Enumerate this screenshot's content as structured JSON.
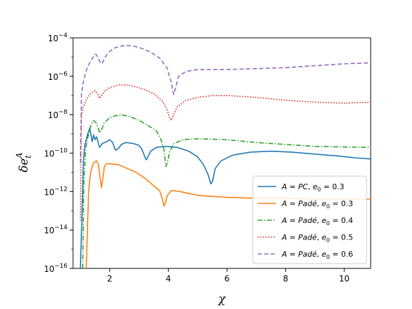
{
  "chart_data": {
    "type": "line",
    "xlabel": "χ",
    "ylabel": "δe_t^A",
    "xlim": [
      0.75,
      10.9
    ],
    "ylim_log10": [
      -16,
      -4
    ],
    "y_scale": "log",
    "grid": false,
    "legend_position": "lower-right",
    "x_ticks": [
      2,
      4,
      6,
      8,
      10
    ],
    "x_tick_labels": [
      "2",
      "4",
      "6",
      "8",
      "10"
    ],
    "y_ticks": [
      {
        "base": "10",
        "exp": "−4"
      },
      {
        "base": "10",
        "exp": "−6"
      },
      {
        "base": "10",
        "exp": "−8"
      },
      {
        "base": "10",
        "exp": "−10"
      },
      {
        "base": "10",
        "exp": "−12"
      },
      {
        "base": "10",
        "exp": "−14"
      },
      {
        "base": "10",
        "exp": "−16"
      }
    ],
    "y_tick_values_log10": [
      -4,
      -6,
      -8,
      -10,
      -12,
      -14,
      -16
    ],
    "series": [
      {
        "name": "A = PC, e0 = 0.3",
        "legend_a": "A",
        "legend_a_value": "PC",
        "legend_e": "e",
        "legend_e_sub": "0",
        "legend_e_value": "0.3",
        "color": "#1f77b4",
        "dash": "solid",
        "points": [
          [
            1.0,
            -16
          ],
          [
            1.05,
            -13.5
          ],
          [
            1.1,
            -10.5
          ],
          [
            1.15,
            -9.6
          ],
          [
            1.25,
            -9.0
          ],
          [
            1.32,
            -8.7
          ],
          [
            1.4,
            -9.4
          ],
          [
            1.45,
            -9.05
          ],
          [
            1.5,
            -9.3
          ],
          [
            1.55,
            -9.15
          ],
          [
            1.6,
            -9.4
          ],
          [
            1.65,
            -9.7
          ],
          [
            1.75,
            -9.5
          ],
          [
            1.9,
            -9.4
          ],
          [
            2.0,
            -9.3
          ],
          [
            2.1,
            -9.45
          ],
          [
            2.2,
            -9.85
          ],
          [
            2.3,
            -9.75
          ],
          [
            2.4,
            -9.55
          ],
          [
            2.55,
            -9.45
          ],
          [
            2.8,
            -9.5
          ],
          [
            3.0,
            -9.6
          ],
          [
            3.1,
            -9.8
          ],
          [
            3.2,
            -10.2
          ],
          [
            3.25,
            -10.35
          ],
          [
            3.3,
            -10.2
          ],
          [
            3.4,
            -9.9
          ],
          [
            3.6,
            -9.7
          ],
          [
            3.9,
            -9.65
          ],
          [
            4.3,
            -9.7
          ],
          [
            4.7,
            -9.9
          ],
          [
            5.0,
            -10.2
          ],
          [
            5.2,
            -10.6
          ],
          [
            5.35,
            -11.1
          ],
          [
            5.45,
            -11.6
          ],
          [
            5.5,
            -11.5
          ],
          [
            5.6,
            -10.8
          ],
          [
            5.8,
            -10.4
          ],
          [
            6.2,
            -10.1
          ],
          [
            6.8,
            -9.95
          ],
          [
            7.5,
            -9.9
          ],
          [
            8.2,
            -9.95
          ],
          [
            9.0,
            -10.05
          ],
          [
            9.8,
            -10.15
          ],
          [
            10.4,
            -10.25
          ],
          [
            10.9,
            -10.3
          ]
        ]
      },
      {
        "name": "A = Padé, e0 = 0.3",
        "legend_a": "A",
        "legend_a_value": "Padé",
        "legend_e": "e",
        "legend_e_sub": "0",
        "legend_e_value": "0.3",
        "color": "#ff7f0e",
        "dash": "solid",
        "points": [
          [
            1.2,
            -16
          ],
          [
            1.28,
            -12.0
          ],
          [
            1.35,
            -11.0
          ],
          [
            1.45,
            -10.5
          ],
          [
            1.55,
            -10.4
          ],
          [
            1.62,
            -10.6
          ],
          [
            1.67,
            -11.3
          ],
          [
            1.72,
            -11.8
          ],
          [
            1.77,
            -11.3
          ],
          [
            1.82,
            -10.7
          ],
          [
            1.9,
            -10.55
          ],
          [
            2.0,
            -10.55
          ],
          [
            2.3,
            -10.6
          ],
          [
            2.6,
            -10.8
          ],
          [
            2.9,
            -11.0
          ],
          [
            3.2,
            -11.3
          ],
          [
            3.5,
            -11.7
          ],
          [
            3.7,
            -11.95
          ],
          [
            3.8,
            -12.4
          ],
          [
            3.85,
            -12.75
          ],
          [
            3.9,
            -12.6
          ],
          [
            3.97,
            -12.2
          ],
          [
            4.1,
            -11.95
          ],
          [
            4.4,
            -12.0
          ],
          [
            5.0,
            -12.2
          ],
          [
            6.0,
            -12.3
          ],
          [
            7.0,
            -12.35
          ],
          [
            8.0,
            -12.35
          ],
          [
            9.0,
            -12.4
          ],
          [
            10.0,
            -12.4
          ],
          [
            10.9,
            -12.4
          ]
        ]
      },
      {
        "name": "A = Padé, e0 = 0.4",
        "legend_a": "A",
        "legend_a_value": "Padé",
        "legend_e": "e",
        "legend_e_sub": "0",
        "legend_e_value": "0.4",
        "color": "#2ca02c",
        "dash": "dashdot",
        "points": [
          [
            1.08,
            -16
          ],
          [
            1.12,
            -11.5
          ],
          [
            1.18,
            -9.8
          ],
          [
            1.25,
            -9.2
          ],
          [
            1.35,
            -8.6
          ],
          [
            1.45,
            -8.3
          ],
          [
            1.55,
            -8.45
          ],
          [
            1.62,
            -8.75
          ],
          [
            1.66,
            -8.95
          ],
          [
            1.72,
            -8.8
          ],
          [
            1.8,
            -8.45
          ],
          [
            2.0,
            -8.15
          ],
          [
            2.2,
            -8.05
          ],
          [
            2.4,
            -8.0
          ],
          [
            2.7,
            -8.1
          ],
          [
            3.0,
            -8.3
          ],
          [
            3.3,
            -8.55
          ],
          [
            3.6,
            -8.85
          ],
          [
            3.75,
            -9.3
          ],
          [
            3.85,
            -9.8
          ],
          [
            3.92,
            -10.7
          ],
          [
            3.97,
            -10.5
          ],
          [
            4.05,
            -9.9
          ],
          [
            4.2,
            -9.5
          ],
          [
            4.5,
            -9.3
          ],
          [
            5.0,
            -9.25
          ],
          [
            6.0,
            -9.3
          ],
          [
            7.0,
            -9.45
          ],
          [
            8.0,
            -9.55
          ],
          [
            9.0,
            -9.65
          ],
          [
            10.0,
            -9.68
          ],
          [
            10.9,
            -9.7
          ]
        ]
      },
      {
        "name": "A = Padé, e0 = 0.5",
        "legend_a": "A",
        "legend_a_value": "Padé",
        "legend_e": "e",
        "legend_e_sub": "0",
        "legend_e_value": "0.5",
        "color": "#d62728",
        "dash": "dotted",
        "points": [
          [
            1.0,
            -13.5
          ],
          [
            1.04,
            -8.0
          ],
          [
            1.1,
            -7.6
          ],
          [
            1.2,
            -7.2
          ],
          [
            1.35,
            -6.9
          ],
          [
            1.5,
            -6.75
          ],
          [
            1.6,
            -6.95
          ],
          [
            1.66,
            -7.15
          ],
          [
            1.72,
            -7.0
          ],
          [
            1.85,
            -6.75
          ],
          [
            2.0,
            -6.6
          ],
          [
            2.3,
            -6.45
          ],
          [
            2.6,
            -6.45
          ],
          [
            2.9,
            -6.55
          ],
          [
            3.2,
            -6.7
          ],
          [
            3.5,
            -6.9
          ],
          [
            3.8,
            -7.3
          ],
          [
            3.95,
            -7.7
          ],
          [
            4.05,
            -8.2
          ],
          [
            4.1,
            -8.3
          ],
          [
            4.18,
            -8.0
          ],
          [
            4.3,
            -7.6
          ],
          [
            4.6,
            -7.25
          ],
          [
            5.0,
            -7.1
          ],
          [
            5.5,
            -7.0
          ],
          [
            6.0,
            -7.0
          ],
          [
            7.0,
            -7.1
          ],
          [
            8.0,
            -7.25
          ],
          [
            9.0,
            -7.35
          ],
          [
            10.0,
            -7.4
          ],
          [
            10.9,
            -7.35
          ]
        ]
      },
      {
        "name": "A = Padé, e0 = 0.6",
        "legend_a": "A",
        "legend_a_value": "Padé",
        "legend_e": "e",
        "legend_e_sub": "0",
        "legend_e_value": "0.6",
        "color": "#9467bd",
        "dash": "dashed",
        "points": [
          [
            1.0,
            -10.5
          ],
          [
            1.04,
            -6.9
          ],
          [
            1.1,
            -6.3
          ],
          [
            1.2,
            -5.7
          ],
          [
            1.3,
            -5.35
          ],
          [
            1.4,
            -5.1
          ],
          [
            1.5,
            -4.85
          ],
          [
            1.55,
            -4.88
          ],
          [
            1.62,
            -5.1
          ],
          [
            1.7,
            -5.35
          ],
          [
            1.75,
            -5.3
          ],
          [
            1.85,
            -5.0
          ],
          [
            2.0,
            -4.7
          ],
          [
            2.2,
            -4.5
          ],
          [
            2.5,
            -4.4
          ],
          [
            2.8,
            -4.42
          ],
          [
            3.1,
            -4.55
          ],
          [
            3.4,
            -4.75
          ],
          [
            3.7,
            -5.05
          ],
          [
            3.95,
            -5.55
          ],
          [
            4.1,
            -6.3
          ],
          [
            4.18,
            -6.95
          ],
          [
            4.25,
            -6.6
          ],
          [
            4.35,
            -6.0
          ],
          [
            4.6,
            -5.75
          ],
          [
            5.0,
            -5.65
          ],
          [
            6.0,
            -5.65
          ],
          [
            7.0,
            -5.6
          ],
          [
            8.0,
            -5.55
          ],
          [
            9.0,
            -5.45
          ],
          [
            10.0,
            -5.35
          ],
          [
            10.9,
            -5.3
          ]
        ]
      }
    ]
  }
}
